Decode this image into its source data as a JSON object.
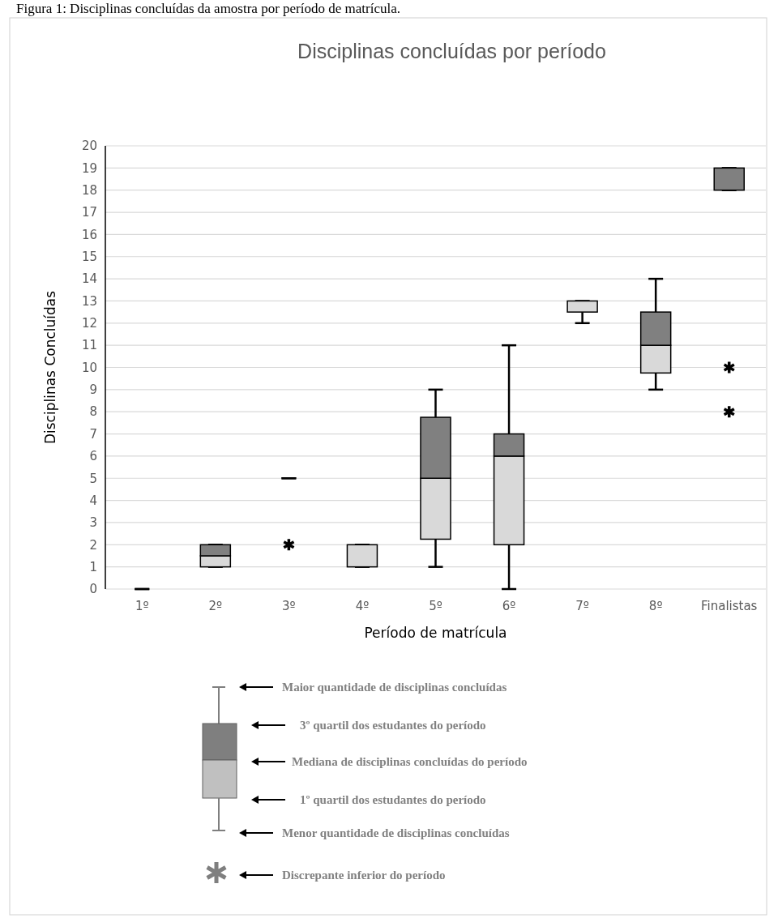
{
  "chart_data": {
    "type": "box",
    "title": "Disciplinas concluídas por período",
    "xlabel": "Período de matrícula",
    "ylabel": "Disciplinas Concluídas",
    "categories": [
      "1º",
      "2º",
      "3º",
      "4º",
      "5º",
      "6º",
      "7º",
      "8º",
      "Finalistas"
    ],
    "boxes": [
      {
        "low": 0,
        "q1": 0,
        "median": 0,
        "q3": 0,
        "high": 0
      },
      {
        "low": 1,
        "q1": 1,
        "median": 1.5,
        "q3": 2,
        "high": 2
      },
      {
        "low": 5,
        "q1": 5,
        "median": 5,
        "q3": 5,
        "high": 5,
        "outliers": [
          2
        ]
      },
      {
        "low": 1,
        "q1": 1,
        "median": 2,
        "q3": 2,
        "high": 2
      },
      {
        "low": 1,
        "q1": 2.25,
        "median": 5,
        "q3": 7.75,
        "high": 9
      },
      {
        "low": 0,
        "q1": 2,
        "median": 6,
        "q3": 7,
        "high": 11
      },
      {
        "low": 12,
        "q1": 12.5,
        "median": 13,
        "q3": 13,
        "high": 13
      },
      {
        "low": 9,
        "q1": 9.75,
        "median": 11,
        "q3": 12.5,
        "high": 14
      },
      {
        "low": 18,
        "q1": 18,
        "median": 18,
        "q3": 19,
        "high": 19,
        "outliers": [
          10,
          8
        ]
      }
    ],
    "ylim": [
      0,
      20
    ],
    "yticks": [
      0,
      1,
      2,
      3,
      4,
      5,
      6,
      7,
      8,
      9,
      10,
      11,
      12,
      13,
      14,
      15,
      16,
      17,
      18,
      19,
      20
    ],
    "grid": "y",
    "annotations": [
      "Figura 1: Disciplinas concluídas da amostra por período de matrícula.",
      "Maior quantidade de disciplinas concluídas",
      "3º quartil dos estudantes do período",
      "Mediana de disciplinas concluídas do período",
      "1º quartil dos estudantes do período",
      "Menor quantidade de disciplinas concluídas",
      "Discrepante inferior do período"
    ]
  }
}
